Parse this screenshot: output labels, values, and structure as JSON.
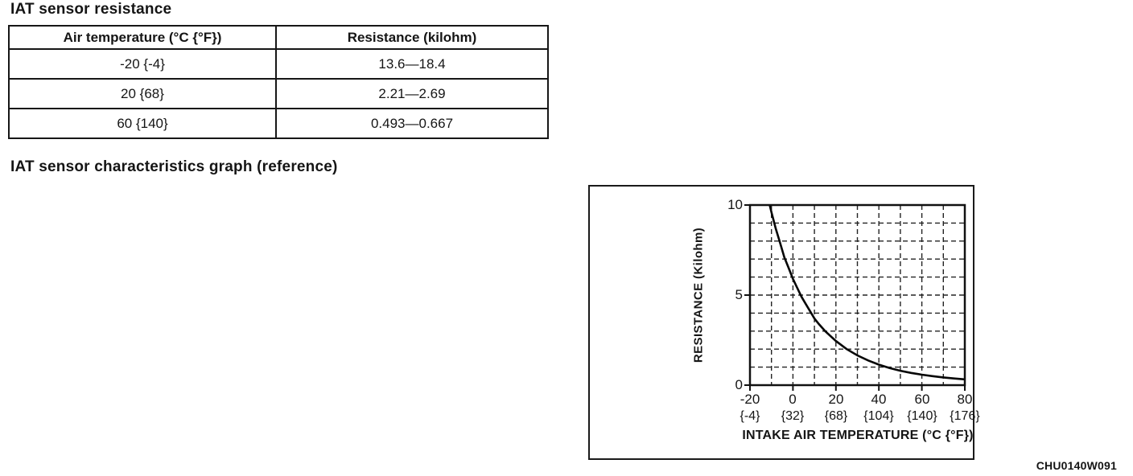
{
  "page": {
    "heading_resistance": "IAT sensor resistance",
    "heading_graph": "IAT sensor characteristics graph (reference)",
    "figure_code": "CHU0140W091"
  },
  "table": {
    "headers": [
      "Air temperature (°C {°F})",
      "Resistance (kilohm)"
    ],
    "rows": [
      [
        "-20 {-4}",
        "13.6—18.4"
      ],
      [
        "20 {68}",
        "2.21—2.69"
      ],
      [
        "60 {140}",
        "0.493—0.667"
      ]
    ]
  },
  "chart_data": {
    "type": "line",
    "title": "",
    "xlabel": "INTAKE AIR TEMPERATURE (°C {°F})",
    "ylabel": "RESISTANCE (Kilohm)",
    "xlim": [
      -20,
      80
    ],
    "ylim": [
      0,
      10
    ],
    "grid": "dashed",
    "grid_step_x": 10,
    "grid_step_y": 1,
    "x_tick_values": [
      -20,
      0,
      20,
      40,
      60,
      80
    ],
    "x_ticks_c": [
      "-20",
      "0",
      "20",
      "40",
      "60",
      "80"
    ],
    "x_ticks_f": [
      "{-4}",
      "{32}",
      "{68}",
      "{104}",
      "{140}",
      "{176}"
    ],
    "y_tick_values": [
      0,
      5,
      10
    ],
    "y_ticks": [
      "0",
      "5",
      "10"
    ],
    "series": [
      {
        "name": "IAT sensor resistance vs intake air temperature",
        "x": [
          -13,
          -11,
          -10,
          -8,
          -6,
          -4,
          -2,
          0,
          2,
          4,
          6,
          8,
          10,
          12,
          15,
          20,
          25,
          30,
          35,
          40,
          45,
          50,
          55,
          60,
          65,
          70,
          75,
          80
        ],
        "y": [
          11.2,
          10.1,
          9.6,
          8.7,
          7.9,
          7.1,
          6.5,
          5.9,
          5.4,
          4.9,
          4.5,
          4.1,
          3.7,
          3.4,
          3.0,
          2.45,
          2.0,
          1.65,
          1.37,
          1.14,
          0.95,
          0.8,
          0.68,
          0.58,
          0.5,
          0.43,
          0.37,
          0.32
        ]
      }
    ]
  }
}
